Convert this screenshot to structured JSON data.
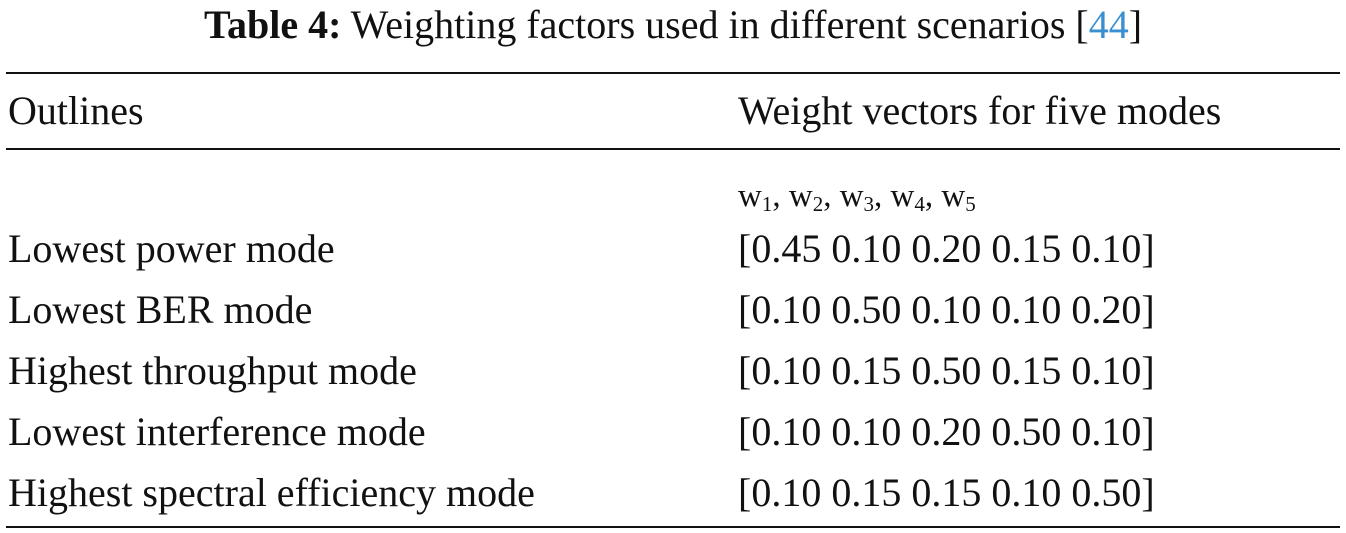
{
  "caption": {
    "label": "Table 4:",
    "text": " Weighting factors used in different scenarios [",
    "ref": "44",
    "close": "]"
  },
  "table": {
    "headers": {
      "outlines": "Outlines",
      "weights": "Weight vectors for five modes"
    },
    "weight_symbols": [
      "w",
      "1",
      "w",
      "2",
      "w",
      "3",
      "w",
      "4",
      "w",
      "5"
    ],
    "rows": [
      {
        "outline": "Lowest power mode",
        "weights": "[0.45 0.10 0.20 0.15 0.10]"
      },
      {
        "outline": "Lowest BER mode",
        "weights": "[0.10 0.50 0.10 0.10 0.20]"
      },
      {
        "outline": "Highest throughput mode",
        "weights": "[0.10 0.15 0.50 0.15 0.10]"
      },
      {
        "outline": "Lowest interference mode",
        "weights": "[0.10 0.10 0.20 0.50 0.10]"
      },
      {
        "outline": "Highest spectral efficiency mode",
        "weights": "[0.10 0.15 0.15 0.10 0.50]"
      }
    ]
  }
}
